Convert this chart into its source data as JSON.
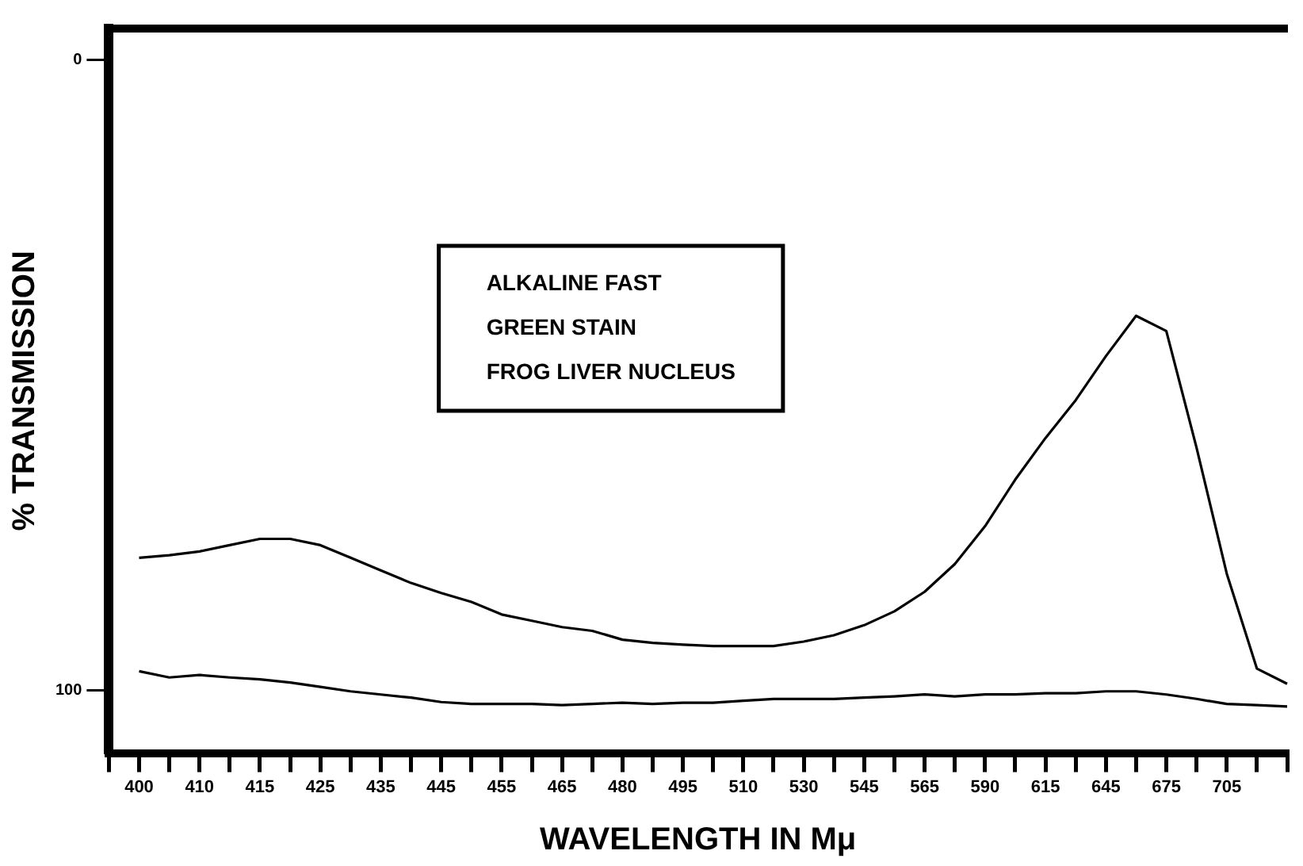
{
  "chart_data": {
    "type": "line",
    "xlabel": "WAVELENGTH IN Mμ",
    "ylabel": "% TRANSMISSION",
    "categories": [
      null,
      "400",
      null,
      "410",
      null,
      "415",
      null,
      "425",
      null,
      "435",
      null,
      "445",
      null,
      "455",
      null,
      "465",
      null,
      "480",
      null,
      "495",
      null,
      "510",
      null,
      "530",
      null,
      "545",
      null,
      "565",
      null,
      "590",
      null,
      "615",
      null,
      "645",
      null,
      "675",
      null,
      "705",
      null,
      null
    ],
    "series": [
      {
        "color": "#000000",
        "values": [
          null,
          79,
          78.6,
          78,
          77,
          76,
          76,
          77,
          79,
          81,
          83,
          84.6,
          86,
          88,
          89,
          90,
          90.6,
          92,
          92.5,
          92.8,
          93,
          93,
          93,
          92.3,
          91.3,
          89.7,
          87.5,
          84.4,
          80,
          74,
          66.6,
          60,
          54,
          47,
          40.6,
          43,
          61.5,
          81.5,
          96.6,
          99
        ]
      },
      {
        "color": "#000000",
        "values": [
          null,
          97,
          98,
          97.6,
          98,
          98.3,
          98.8,
          99.5,
          100.2,
          100.7,
          101.2,
          101.9,
          102.2,
          102.2,
          102.2,
          102.4,
          102.2,
          102,
          102.2,
          102,
          102,
          101.7,
          101.4,
          101.4,
          101.4,
          101.2,
          101,
          100.7,
          101,
          100.7,
          100.7,
          100.5,
          100.5,
          100.2,
          100.2,
          100.7,
          101.4,
          102.2,
          102.4,
          102.6
        ]
      }
    ],
    "ylim": [
      110,
      -5
    ],
    "yticks": [
      0,
      100
    ],
    "grid": false,
    "legend": false,
    "marker": "none",
    "line_style": "solid",
    "annotations": [
      "ALKALINE FAST",
      "GREEN STAIN",
      "FROG LIVER NUCLEUS"
    ]
  }
}
